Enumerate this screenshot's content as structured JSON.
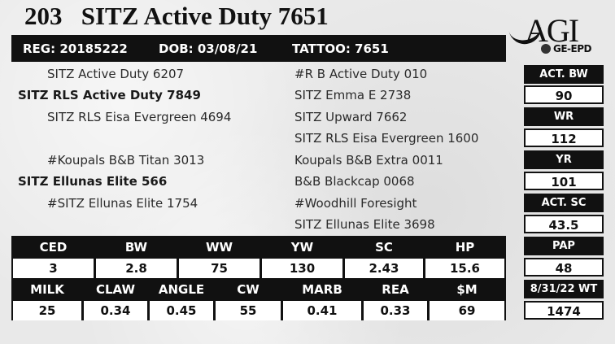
{
  "title": "203   SITZ Active Duty 7651",
  "id_bar": {
    "reg": "REG: 20185222",
    "dob": "DOB: 03/08/21",
    "tattoo": "TATTOO: 7651"
  },
  "logo": {
    "main": "AGI",
    "sub": "GE-EPD"
  },
  "pedigree": {
    "sire_sire_sire": "SITZ Active Duty 6207",
    "sire": "SITZ RLS Active Duty 7849",
    "sire_dam_sire": "SITZ RLS Eisa Evergreen 4694",
    "dam_sire_sire": "#Koupals B&B Titan 3013",
    "dam": "SITZ Ellunas Elite 566",
    "dam_dam_sire": "#SITZ Ellunas Elite 1754",
    "right": [
      "#R B Active Duty 010",
      "SITZ Emma E 2738",
      "SITZ Upward 7662",
      "SITZ RLS Eisa Evergreen 1600",
      "Koupals B&B Extra 0011",
      "B&B Blackcap 0068",
      "#Woodhill Foresight",
      "SITZ Ellunas Elite 3698"
    ]
  },
  "side_stats": [
    {
      "label": "ACT. BW",
      "value": "90"
    },
    {
      "label": "WR",
      "value": "112"
    },
    {
      "label": "YR",
      "value": "101"
    },
    {
      "label": "ACT. SC",
      "value": "43.5"
    },
    {
      "label": "PAP",
      "value": "48"
    },
    {
      "label": "8/31/22 WT",
      "value": "1474"
    }
  ],
  "epd_row1": {
    "headers": [
      "CED",
      "BW",
      "WW",
      "YW",
      "SC",
      "HP"
    ],
    "values": [
      "3",
      "2.8",
      "75",
      "130",
      "2.43",
      "15.6"
    ]
  },
  "epd_row2": {
    "headers": [
      "MILK",
      "CLAW",
      "ANGLE",
      "CW",
      "MARB",
      "REA",
      "$M"
    ],
    "values": [
      "25",
      "0.34",
      "0.45",
      "55",
      "0.41",
      "0.33",
      "69"
    ]
  }
}
